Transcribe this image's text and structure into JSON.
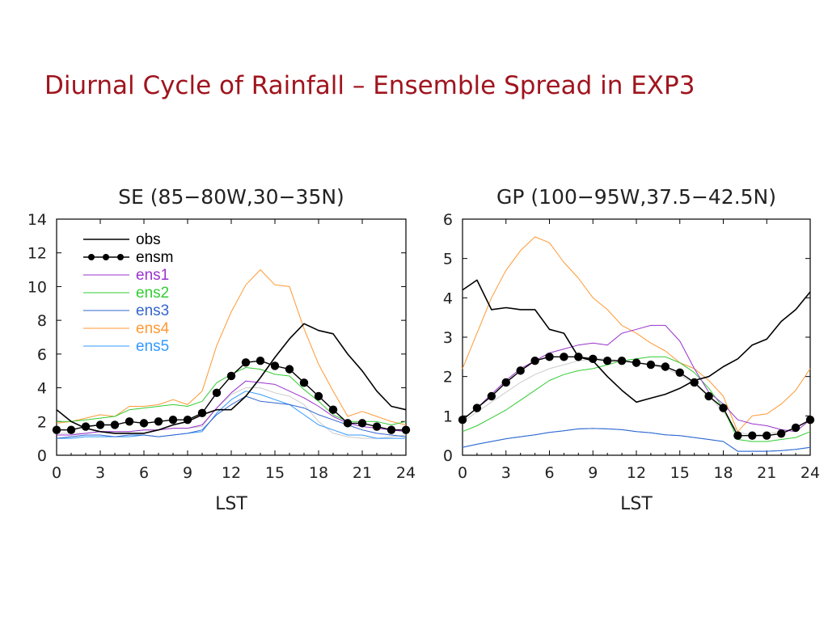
{
  "slide": {
    "title": "Diurnal Cycle of Rainfall – Ensemble Spread in EXP3"
  },
  "chart_data": [
    {
      "type": "line",
      "title": "SE (85−80W,30−35N)",
      "xlabel": "LST",
      "ylabel": "",
      "xlim": [
        0,
        24
      ],
      "ylim": [
        0,
        14
      ],
      "xticks": [
        0,
        3,
        6,
        9,
        12,
        15,
        18,
        21,
        24
      ],
      "yticks": [
        0,
        2,
        4,
        6,
        8,
        10,
        12,
        14
      ],
      "grid": false,
      "legend": "top-left",
      "x": [
        0,
        1,
        2,
        3,
        4,
        5,
        6,
        7,
        8,
        9,
        10,
        11,
        12,
        13,
        14,
        15,
        16,
        17,
        18,
        19,
        20,
        21,
        22,
        23,
        24
      ],
      "series": [
        {
          "name": "obs",
          "color": "#000000",
          "width": 1.6,
          "markers": false,
          "values": [
            2.7,
            2.0,
            1.6,
            1.4,
            1.3,
            1.3,
            1.3,
            1.5,
            1.8,
            2.0,
            2.4,
            2.7,
            2.7,
            3.5,
            4.6,
            5.8,
            6.9,
            7.8,
            7.4,
            7.2,
            6.0,
            5.0,
            3.8,
            2.9,
            2.7
          ]
        },
        {
          "name": "ensm",
          "color": "#000000",
          "width": 1.4,
          "markers": true,
          "values": [
            1.5,
            1.5,
            1.7,
            1.8,
            1.8,
            2.0,
            1.9,
            2.0,
            2.1,
            2.1,
            2.5,
            3.7,
            4.7,
            5.5,
            5.6,
            5.3,
            5.1,
            4.3,
            3.5,
            2.7,
            1.9,
            1.9,
            1.7,
            1.5,
            1.5
          ]
        },
        {
          "name": "ens1",
          "color": "#9933CC",
          "width": 1,
          "markers": false,
          "values": [
            1.2,
            1.2,
            1.3,
            1.4,
            1.4,
            1.4,
            1.5,
            1.5,
            1.6,
            1.6,
            1.8,
            2.8,
            3.7,
            4.4,
            4.3,
            4.2,
            3.8,
            3.4,
            2.9,
            2.3,
            1.9,
            1.7,
            1.6,
            1.5,
            1.4
          ]
        },
        {
          "name": "ens2",
          "color": "#33CC33",
          "width": 1,
          "markers": false,
          "values": [
            2.0,
            2.0,
            2.1,
            2.2,
            2.3,
            2.7,
            2.8,
            2.9,
            3.0,
            2.9,
            3.2,
            4.3,
            4.8,
            5.2,
            5.1,
            4.8,
            4.7,
            3.9,
            3.2,
            2.4,
            2.0,
            2.0,
            2.0,
            1.8,
            2.0
          ]
        },
        {
          "name": "ens3",
          "color": "#3366CC",
          "width": 1,
          "markers": false,
          "values": [
            1.0,
            1.1,
            1.2,
            1.2,
            1.1,
            1.2,
            1.2,
            1.1,
            1.2,
            1.3,
            1.5,
            2.4,
            3.0,
            3.5,
            3.2,
            3.1,
            3.0,
            2.8,
            2.4,
            2.1,
            1.8,
            1.5,
            1.3,
            1.2,
            1.1
          ]
        },
        {
          "name": "ens4",
          "color": "#FF9933",
          "width": 1,
          "markers": false,
          "values": [
            1.9,
            2.0,
            2.2,
            2.4,
            2.3,
            2.9,
            2.9,
            3.0,
            3.3,
            3.0,
            3.8,
            6.5,
            8.5,
            10.1,
            11.0,
            10.1,
            10.0,
            7.5,
            5.4,
            3.8,
            2.3,
            2.6,
            2.3,
            2.0,
            1.8
          ]
        },
        {
          "name": "ens5",
          "color": "#3399FF",
          "width": 1,
          "markers": false,
          "values": [
            1.0,
            1.0,
            1.1,
            1.1,
            1.1,
            1.1,
            1.2,
            1.1,
            1.2,
            1.3,
            1.4,
            2.5,
            3.3,
            3.8,
            3.6,
            3.3,
            3.0,
            2.4,
            1.8,
            1.5,
            1.2,
            1.2,
            1.0,
            1.0,
            1.0
          ]
        },
        {
          "name": "",
          "color": "#CCCCCC",
          "width": 1,
          "markers": false,
          "values": [
            1.3,
            1.3,
            1.3,
            1.4,
            1.4,
            1.4,
            1.5,
            1.5,
            1.6,
            1.6,
            1.7,
            2.8,
            3.6,
            4.0,
            4.0,
            3.7,
            3.5,
            3.0,
            2.0,
            1.3,
            1.1,
            1.0,
            1.0,
            1.1,
            1.2
          ]
        }
      ]
    },
    {
      "type": "line",
      "title": "GP (100−95W,37.5−42.5N)",
      "xlabel": "LST",
      "ylabel": "",
      "xlim": [
        0,
        24
      ],
      "ylim": [
        0,
        6
      ],
      "xticks": [
        0,
        3,
        6,
        9,
        12,
        15,
        18,
        21,
        24
      ],
      "yticks": [
        0,
        1,
        2,
        3,
        4,
        5,
        6
      ],
      "grid": false,
      "legend": "none",
      "x": [
        0,
        1,
        2,
        3,
        4,
        5,
        6,
        7,
        8,
        9,
        10,
        11,
        12,
        13,
        14,
        15,
        16,
        17,
        18,
        19,
        20,
        21,
        22,
        23,
        24
      ],
      "series": [
        {
          "name": "obs",
          "color": "#000000",
          "width": 1.6,
          "markers": false,
          "values": [
            4.2,
            4.45,
            3.7,
            3.75,
            3.7,
            3.7,
            3.2,
            3.1,
            2.5,
            2.4,
            2.0,
            1.65,
            1.35,
            1.45,
            1.55,
            1.7,
            1.9,
            2.0,
            2.25,
            2.45,
            2.8,
            2.95,
            3.4,
            3.7,
            4.15
          ]
        },
        {
          "name": "ensm",
          "color": "#000000",
          "width": 1.4,
          "markers": true,
          "values": [
            0.9,
            1.2,
            1.5,
            1.85,
            2.15,
            2.4,
            2.5,
            2.5,
            2.5,
            2.45,
            2.4,
            2.4,
            2.35,
            2.3,
            2.25,
            2.1,
            1.85,
            1.5,
            1.2,
            0.5,
            0.5,
            0.5,
            0.55,
            0.7,
            0.9
          ]
        },
        {
          "name": "ens1",
          "color": "#9933CC",
          "width": 1,
          "markers": false,
          "values": [
            0.9,
            1.2,
            1.55,
            1.9,
            2.2,
            2.4,
            2.6,
            2.7,
            2.8,
            2.85,
            2.8,
            3.1,
            3.2,
            3.3,
            3.3,
            2.9,
            2.2,
            1.6,
            1.3,
            0.9,
            0.8,
            0.75,
            0.65,
            0.6,
            0.9
          ]
        },
        {
          "name": "ens2",
          "color": "#33CC33",
          "width": 1,
          "markers": false,
          "values": [
            0.6,
            0.75,
            0.95,
            1.15,
            1.4,
            1.65,
            1.9,
            2.05,
            2.15,
            2.2,
            2.3,
            2.4,
            2.45,
            2.5,
            2.5,
            2.35,
            2.1,
            1.7,
            1.2,
            0.4,
            0.35,
            0.35,
            0.4,
            0.45,
            0.6
          ]
        },
        {
          "name": "ens3",
          "color": "#3366CC",
          "width": 1,
          "markers": false,
          "values": [
            0.2,
            0.28,
            0.35,
            0.42,
            0.47,
            0.52,
            0.58,
            0.62,
            0.67,
            0.68,
            0.67,
            0.65,
            0.6,
            0.57,
            0.52,
            0.5,
            0.45,
            0.4,
            0.35,
            0.1,
            0.1,
            0.1,
            0.12,
            0.15,
            0.2
          ]
        },
        {
          "name": "ens4",
          "color": "#FF9933",
          "width": 1,
          "markers": false,
          "values": [
            2.2,
            3.1,
            4.0,
            4.7,
            5.2,
            5.55,
            5.4,
            4.9,
            4.5,
            4.0,
            3.7,
            3.3,
            3.1,
            2.85,
            2.65,
            2.35,
            2.2,
            1.9,
            1.5,
            0.6,
            1.0,
            1.05,
            1.3,
            1.65,
            2.2
          ]
        },
        {
          "name": "ens5",
          "color": "#3399FF",
          "width": 1,
          "markers": false,
          "values": [
            0.2,
            0.28,
            0.35,
            0.42,
            0.47,
            0.52,
            0.58,
            0.62,
            0.67,
            0.68,
            0.67,
            0.65,
            0.6,
            0.57,
            0.52,
            0.5,
            0.45,
            0.4,
            0.35,
            0.1,
            0.1,
            0.1,
            0.12,
            0.15,
            0.2
          ]
        },
        {
          "name": "",
          "color": "#CCCCCC",
          "width": 1,
          "markers": false,
          "values": [
            0.85,
            1.1,
            1.35,
            1.6,
            1.85,
            2.05,
            2.2,
            2.3,
            2.4,
            2.45,
            2.45,
            2.4,
            2.35,
            2.3,
            2.2,
            2.05,
            1.8,
            1.5,
            1.1,
            0.6,
            0.5,
            0.55,
            0.6,
            0.7,
            0.9
          ]
        }
      ]
    }
  ]
}
